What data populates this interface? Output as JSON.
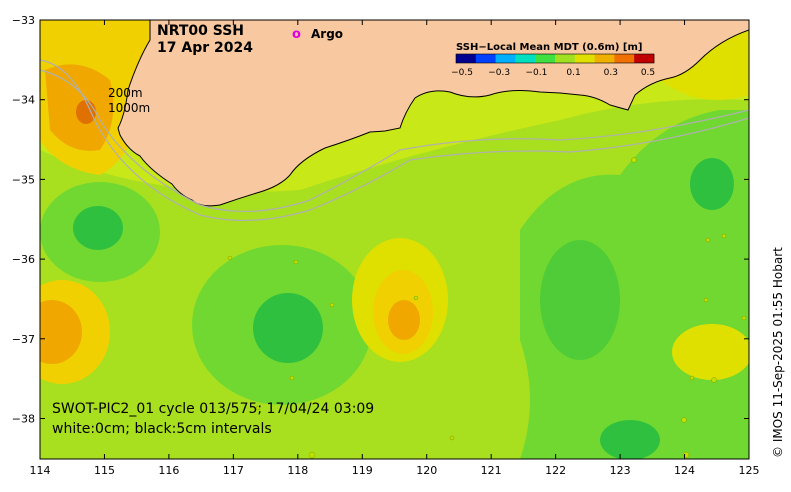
{
  "map": {
    "title_line1": "NRT00 SSH",
    "title_line2": "17 Apr 2024",
    "argo_marker": "o",
    "argo_label": "Argo",
    "isobath_200": "200m",
    "isobath_1000": "1000m",
    "pass_info": "SWOT-PIC2_01 cycle 013/575; 17/04/24 03:09",
    "contour_note": "white:0cm; black:5cm intervals",
    "credit": "© IMOS 11-Sep-2025 01:55 Hobart",
    "lon_ticks": [
      "114",
      "115",
      "116",
      "117",
      "118",
      "119",
      "120",
      "121",
      "122",
      "123",
      "124",
      "125"
    ],
    "lat_ticks": [
      "−33",
      "−34",
      "−35",
      "−36",
      "−37",
      "−38"
    ],
    "colors": {
      "land": "#f8c8a0",
      "background_green": "#a8e020",
      "argo": "#e000e0"
    }
  },
  "legend": {
    "title": "SSH−Local Mean MDT (0.6m) [m]",
    "ticks": [
      "−0.5",
      "−0.3",
      "−0.1",
      "0.1",
      "0.3",
      "0.5"
    ],
    "colors": [
      "#000090",
      "#0040ff",
      "#00b0ff",
      "#00e0c0",
      "#40e040",
      "#a0e020",
      "#e0e000",
      "#f0b000",
      "#f07000",
      "#c00000"
    ]
  }
}
